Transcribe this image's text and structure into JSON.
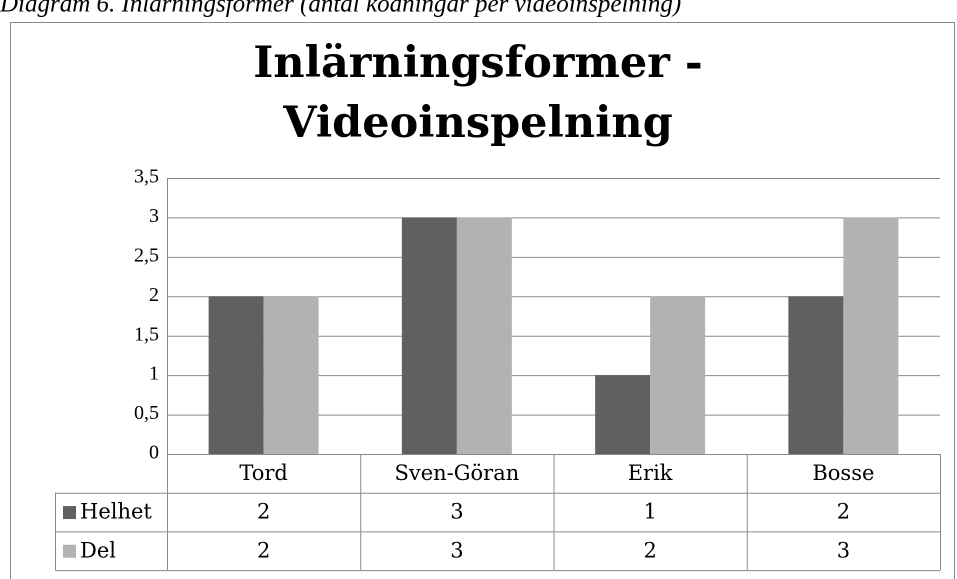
{
  "caption": "Diagram 6. Inlärningsformer (antal kodningar per videoinspelning)",
  "chart_data": {
    "type": "bar",
    "title": [
      "Inlärningsformer -",
      "Videoinspelning"
    ],
    "categories": [
      "Tord",
      "Sven-Göran",
      "Erik",
      "Bosse"
    ],
    "series": [
      {
        "name": "Helhet",
        "color": "#606060",
        "values": [
          2,
          3,
          1,
          2
        ]
      },
      {
        "name": "Del",
        "color": "#b2b2b2",
        "values": [
          2,
          3,
          2,
          3
        ]
      }
    ],
    "ylim": [
      0,
      3.5
    ],
    "yticks": [
      0,
      {
        "value": 0.5,
        "label": "0,5"
      },
      1,
      {
        "value": 1.5,
        "label": "1,5"
      },
      2,
      {
        "value": 2.5,
        "label": "2,5"
      },
      3,
      {
        "value": 3.5,
        "label": "3,5"
      }
    ],
    "grid": true,
    "data_table": true
  }
}
